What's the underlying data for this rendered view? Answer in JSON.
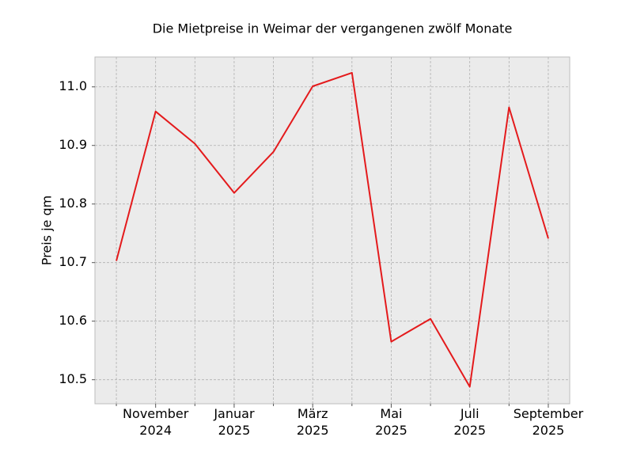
{
  "chart_data": {
    "type": "line",
    "title": "Die Mietpreise in Weimar der vergangenen zwölf Monate",
    "y_label": "Preis je qm",
    "categories": [
      null,
      "November 2024",
      null,
      "Januar 2025",
      null,
      "März 2025",
      null,
      "Mai 2025",
      null,
      "Juli 2025",
      null,
      "September 2025"
    ],
    "series": [
      {
        "name": "Preis je qm",
        "color": "#e41a1c",
        "values": [
          10.703,
          10.958,
          10.903,
          10.819,
          10.889,
          11.001,
          11.024,
          10.565,
          10.604,
          10.488,
          10.965,
          10.741
        ]
      }
    ],
    "ylim": [
      10.459,
      11.051
    ],
    "yticks": [
      10.5,
      10.6,
      10.7,
      10.8,
      10.9,
      {
        "value": 11.0,
        "label": "11.0"
      }
    ],
    "grid": true
  }
}
